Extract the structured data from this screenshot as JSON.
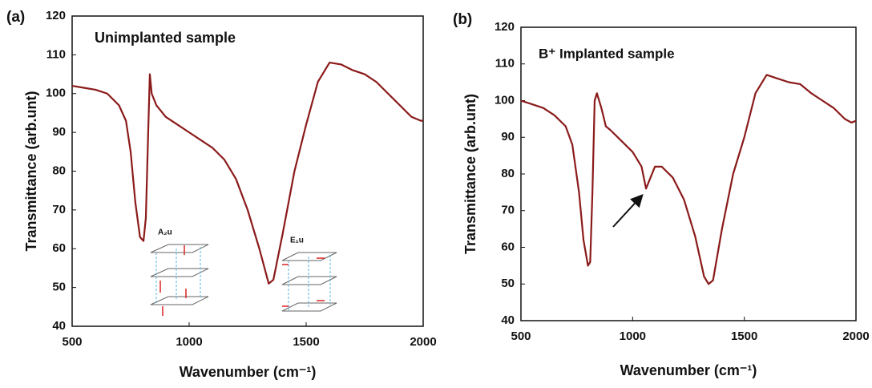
{
  "chart_data": [
    {
      "type": "line",
      "panel_label": "(a)",
      "annotations": [
        "Unimplanted sample",
        "A₂u",
        "E₁u"
      ],
      "x_label": "Wavenumber (cm⁻¹)",
      "y_label": "Transmittance  (arb.unt)",
      "x": [
        500,
        550,
        600,
        650,
        700,
        730,
        750,
        770,
        790,
        805,
        815,
        825,
        832,
        840,
        860,
        900,
        950,
        1000,
        1050,
        1100,
        1150,
        1200,
        1250,
        1300,
        1340,
        1360,
        1400,
        1450,
        1500,
        1550,
        1600,
        1650,
        1700,
        1750,
        1800,
        1850,
        1900,
        1950,
        1990,
        2000
      ],
      "series": [
        {
          "color": "#8b1a1a",
          "values": [
            102,
            101.5,
            101,
            100,
            97,
            93,
            85,
            72,
            63,
            62,
            68,
            90,
            105,
            100,
            97,
            94,
            92,
            90,
            88,
            86,
            83,
            78,
            70,
            60,
            51,
            52,
            64,
            80,
            92,
            103,
            108,
            107.5,
            106,
            105,
            103,
            100,
            97,
            94,
            93,
            93
          ]
        }
      ],
      "xlim": [
        500,
        2000
      ],
      "xticks": [
        500,
        1000,
        1500,
        2000
      ],
      "ylim": [
        40,
        120
      ],
      "yticks": [
        40,
        50,
        60,
        70,
        80,
        90,
        100,
        110,
        120
      ]
    },
    {
      "type": "line",
      "panel_label": "(b)",
      "annotations": [
        "B⁺ Implanted sample"
      ],
      "x_label": "Wavenumber (cm⁻¹)",
      "y_label": "Transmittance  (arb.unt)",
      "x": [
        500,
        550,
        600,
        650,
        700,
        730,
        760,
        780,
        800,
        810,
        820,
        830,
        840,
        860,
        880,
        900,
        950,
        1000,
        1040,
        1060,
        1080,
        1100,
        1130,
        1180,
        1230,
        1280,
        1320,
        1340,
        1360,
        1400,
        1450,
        1500,
        1550,
        1600,
        1650,
        1700,
        1750,
        1800,
        1850,
        1900,
        1950,
        1980,
        2000
      ],
      "series": [
        {
          "color": "#8b1a1a",
          "values": [
            100,
            99,
            98,
            96,
            93,
            88,
            75,
            62,
            55,
            56,
            75,
            100,
            102,
            98,
            93,
            92,
            89,
            86,
            82,
            76,
            79,
            82,
            82,
            79,
            73,
            63,
            52,
            50,
            51,
            65,
            80,
            90,
            102,
            107,
            106,
            105,
            104.5,
            102,
            100,
            98,
            95,
            94,
            94.5
          ]
        }
      ],
      "xlim": [
        500,
        2000
      ],
      "xticks": [
        500,
        1000,
        1500,
        2000
      ],
      "ylim": [
        40,
        120
      ],
      "yticks": [
        40,
        50,
        60,
        70,
        80,
        90,
        100,
        110,
        120
      ]
    }
  ]
}
